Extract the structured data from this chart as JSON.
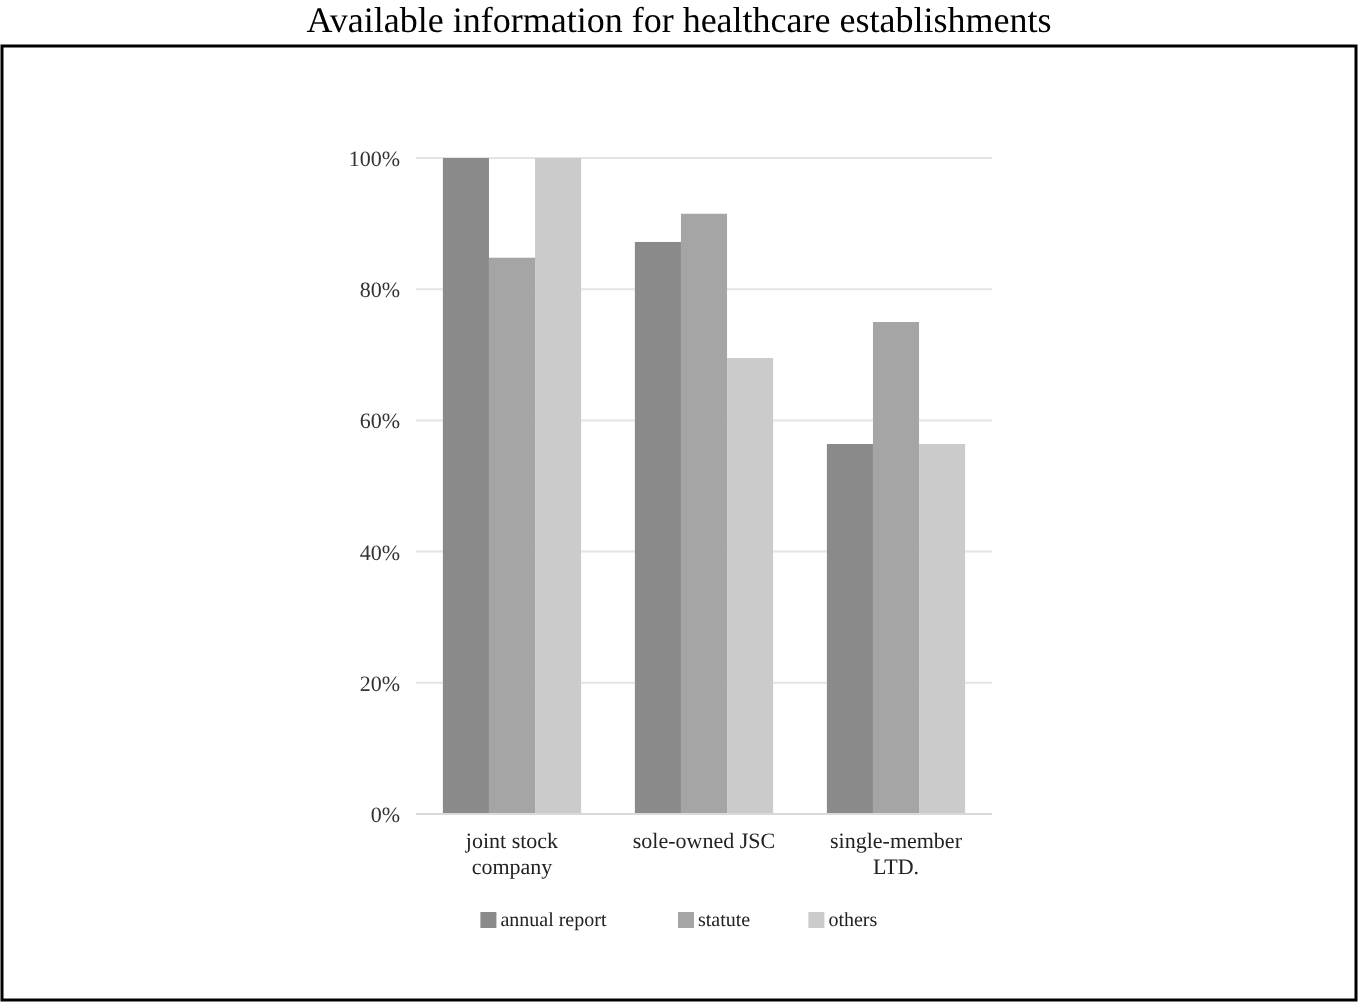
{
  "chart_data": {
    "type": "bar",
    "title": "Available information for healthcare establishments",
    "categories": [
      "joint stock\ncompany",
      "sole-owned JSC",
      "single-member\nLTD."
    ],
    "series": [
      {
        "name": "annual report",
        "color": "#8a8a8a",
        "values": [
          100,
          87.2,
          56.4
        ]
      },
      {
        "name": "statute",
        "color": "#a5a5a5",
        "values": [
          84.8,
          91.5,
          75
        ]
      },
      {
        "name": "others",
        "color": "#cbcbcb",
        "values": [
          100,
          69.5,
          56.4
        ]
      }
    ],
    "ylim": [
      0,
      100
    ],
    "yticks": [
      {
        "value": 0,
        "label": "0%"
      },
      {
        "value": 20,
        "label": "20%"
      },
      {
        "value": 40,
        "label": "40%"
      },
      {
        "value": 60,
        "label": "60%"
      },
      {
        "value": 80,
        "label": "80%"
      },
      {
        "value": 100,
        "label": "100%"
      }
    ],
    "grid": "y",
    "legend": "bottom"
  }
}
